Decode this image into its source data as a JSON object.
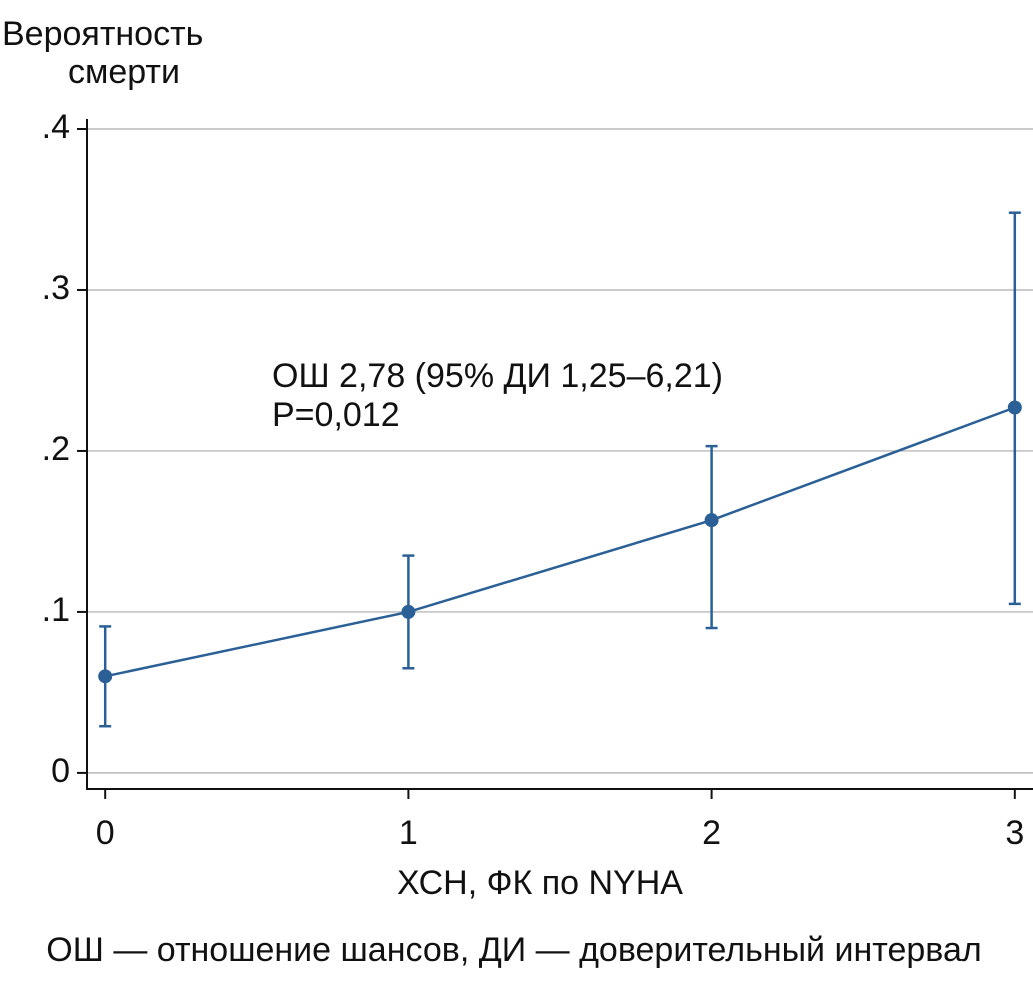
{
  "chart_data": {
    "type": "line",
    "ylabel": [
      "Вероятность",
      "смерти"
    ],
    "xlabel": "ХСН, ФК по NYHA",
    "annotations": [
      "ОШ 2,78 (95% ДИ 1,25–6,21)",
      "P=0,012"
    ],
    "footnote": "ОШ — отношение шансов, ДИ — доверительный интервал",
    "x": [
      0,
      1,
      2,
      3
    ],
    "series": [
      {
        "color": "#2a6096",
        "values": [
          0.06,
          0.1,
          0.157,
          0.227
        ],
        "lower": [
          0.029,
          0.065,
          0.09,
          0.105
        ],
        "upper": [
          0.091,
          0.135,
          0.203,
          0.348
        ]
      }
    ],
    "xlim": [
      -0.06,
      3.06
    ],
    "xticks": [
      0,
      1,
      2,
      3
    ],
    "ylim": [
      -0.01,
      0.4
    ],
    "yticks": [
      0,
      {
        "value": 0.1,
        "label": ".1"
      },
      {
        "value": 0.2,
        "label": ".2"
      },
      {
        "value": 0.3,
        "label": ".3"
      },
      {
        "value": 0.4,
        "label": ".4"
      }
    ],
    "grid": true
  }
}
